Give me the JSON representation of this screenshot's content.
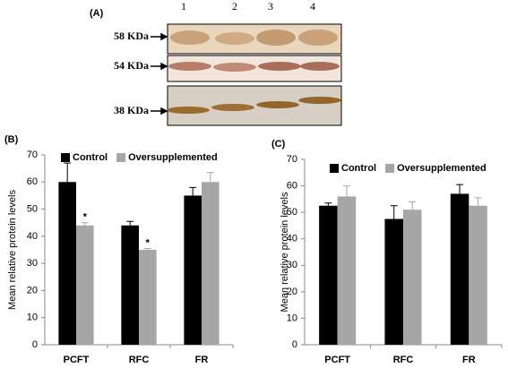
{
  "panel_a": {
    "label": "(A)",
    "lanes": [
      "1",
      "2",
      "3",
      "4"
    ],
    "bands": [
      "58 KDa",
      "54 KDa",
      "38 KDa"
    ]
  },
  "chart_data": [
    {
      "type": "bar",
      "panel_label": "(B)",
      "ylabel": "Mean relative protein levels",
      "categories": [
        "PCFT",
        "RFC",
        "FR"
      ],
      "series": [
        {
          "name": "Control",
          "color": "#000000",
          "values": [
            60,
            44,
            55
          ],
          "errors": [
            7,
            1.5,
            3
          ]
        },
        {
          "name": "Oversupplemented",
          "color": "#a6a6a6",
          "values": [
            44,
            35,
            60
          ],
          "errors": [
            1,
            0.5,
            3.5
          ],
          "significance": [
            "*",
            "*",
            null
          ]
        }
      ],
      "ylim": [
        0,
        70
      ],
      "yticks": [
        0,
        10,
        20,
        30,
        40,
        50,
        60,
        70
      ],
      "legend": "top"
    },
    {
      "type": "bar",
      "panel_label": "(C)",
      "ylabel": "Mean relative protein levels",
      "categories": [
        "PCFT",
        "RFC",
        "FR"
      ],
      "series": [
        {
          "name": "Control",
          "color": "#000000",
          "values": [
            52.5,
            47.5,
            57
          ],
          "errors": [
            1,
            5,
            3.5
          ]
        },
        {
          "name": "Oversupplemented",
          "color": "#a6a6a6",
          "values": [
            56,
            51,
            52.5
          ],
          "errors": [
            4,
            3,
            3
          ]
        }
      ],
      "ylim": [
        0,
        70
      ],
      "yticks": [
        0,
        10,
        20,
        30,
        40,
        50,
        60,
        70
      ],
      "legend": "top"
    }
  ]
}
